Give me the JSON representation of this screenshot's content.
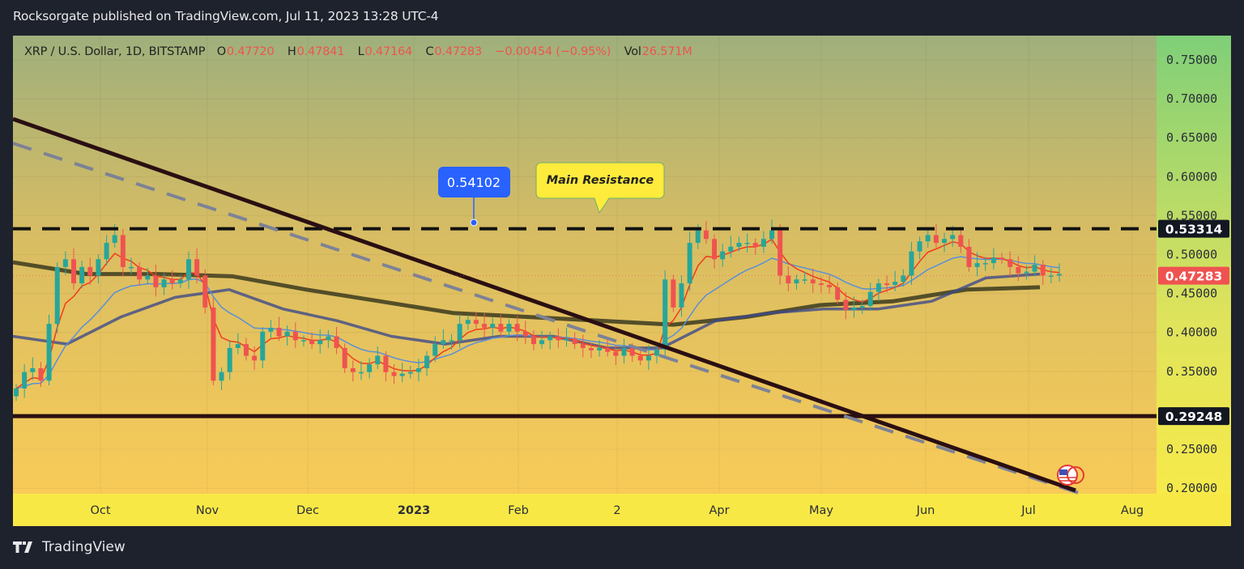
{
  "publisher_line": "Rocksorgate published on TradingView.com, Jul 11, 2023 13:28 UTC-4",
  "legend": {
    "symbol": "XRP / U.S. Dollar, 1D, BITSTAMP",
    "open_label": "O",
    "open": "0.47720",
    "high_label": "H",
    "high": "0.47841",
    "low_label": "L",
    "low": "0.47164",
    "close_label": "C",
    "close": "0.47283",
    "change": "−0.00454 (−0.95%)",
    "vol_label": "Vol",
    "vol": "26.571M"
  },
  "footer": {
    "brand": "TradingView",
    "logo_icon": "tradingview-logo-icon"
  },
  "colors": {
    "up": "#26a69a",
    "down": "#ef5350",
    "ema_fast": "#f23b1c",
    "ma_mid": "#5b8fd8",
    "ma_slow": "#3d4a8a",
    "ma_long": "#3b3a1e",
    "trend_solid": "#2a0f12",
    "trend_dashed": "#7d8296",
    "last_price_bg": "#ef5350",
    "level_bg": "#131722"
  },
  "annotations": {
    "price_label": "0.54102",
    "callout": "Main Resistance",
    "flag_icon": "us-flag-icon"
  },
  "chart_data": {
    "type": "candlestick",
    "title": "",
    "xlabel": "",
    "ylabel": "",
    "ylim": [
      0.2,
      0.75
    ],
    "y_ticks": [
      "0.75000",
      "0.70000",
      "0.65000",
      "0.60000",
      "0.55000",
      "0.50000",
      "0.45000",
      "0.40000",
      "0.35000",
      "0.25000",
      "0.20000"
    ],
    "x_ticks": [
      "Oct",
      "Nov",
      "Dec",
      "2023",
      "Feb",
      "2",
      "Apr",
      "May",
      "Jun",
      "Jul",
      "Aug"
    ],
    "x_range": [
      "2022-09-10",
      "2023-08-20"
    ],
    "grid": true,
    "levels": [
      {
        "price": 0.53314,
        "label": "0.53314",
        "style": "dashed"
      },
      {
        "price": 0.29248,
        "label": "0.29248",
        "style": "solid"
      }
    ],
    "last_price": {
      "price": 0.47283,
      "label": "0.47283"
    },
    "closes_approx": [
      0.328,
      0.349,
      0.354,
      0.338,
      0.411,
      0.484,
      0.494,
      0.463,
      0.484,
      0.473,
      0.494,
      0.515,
      0.525,
      0.484,
      0.484,
      0.468,
      0.473,
      0.458,
      0.468,
      0.463,
      0.468,
      0.494,
      0.473,
      0.432,
      0.338,
      0.349,
      0.38,
      0.385,
      0.37,
      0.364,
      0.401,
      0.406,
      0.395,
      0.401,
      0.39,
      0.39,
      0.385,
      0.39,
      0.395,
      0.38,
      0.354,
      0.349,
      0.349,
      0.359,
      0.37,
      0.349,
      0.344,
      0.347,
      0.349,
      0.354,
      0.37,
      0.385,
      0.39,
      0.39,
      0.411,
      0.416,
      0.411,
      0.406,
      0.411,
      0.401,
      0.411,
      0.401,
      0.395,
      0.385,
      0.39,
      0.395,
      0.39,
      0.392,
      0.385,
      0.38,
      0.377,
      0.38,
      0.375,
      0.37,
      0.38,
      0.37,
      0.364,
      0.37,
      0.378,
      0.468,
      0.432,
      0.463,
      0.515,
      0.531,
      0.52,
      0.494,
      0.504,
      0.51,
      0.515,
      0.515,
      0.51,
      0.52,
      0.531,
      0.473,
      0.463,
      0.468,
      0.468,
      0.463,
      0.461,
      0.458,
      0.442,
      0.429,
      0.432,
      0.434,
      0.452,
      0.463,
      0.461,
      0.465,
      0.473,
      0.504,
      0.517,
      0.525,
      0.515,
      0.52,
      0.525,
      0.51,
      0.484,
      0.489,
      0.489,
      0.496,
      0.494,
      0.484,
      0.476,
      0.478,
      0.487,
      0.473,
      0.473,
      0.475
    ],
    "ma_long_approx": [
      0.49,
      0.475,
      0.475,
      0.472,
      0.455,
      0.44,
      0.425,
      0.42,
      0.415,
      0.41,
      0.42,
      0.435,
      0.44,
      0.455,
      0.458
    ],
    "ma_slow_approx": [
      0.395,
      0.385,
      0.42,
      0.445,
      0.455,
      0.43,
      0.415,
      0.395,
      0.385,
      0.395,
      0.395,
      0.38,
      0.38,
      0.415,
      0.425,
      0.43,
      0.43,
      0.44,
      0.47,
      0.475
    ]
  }
}
